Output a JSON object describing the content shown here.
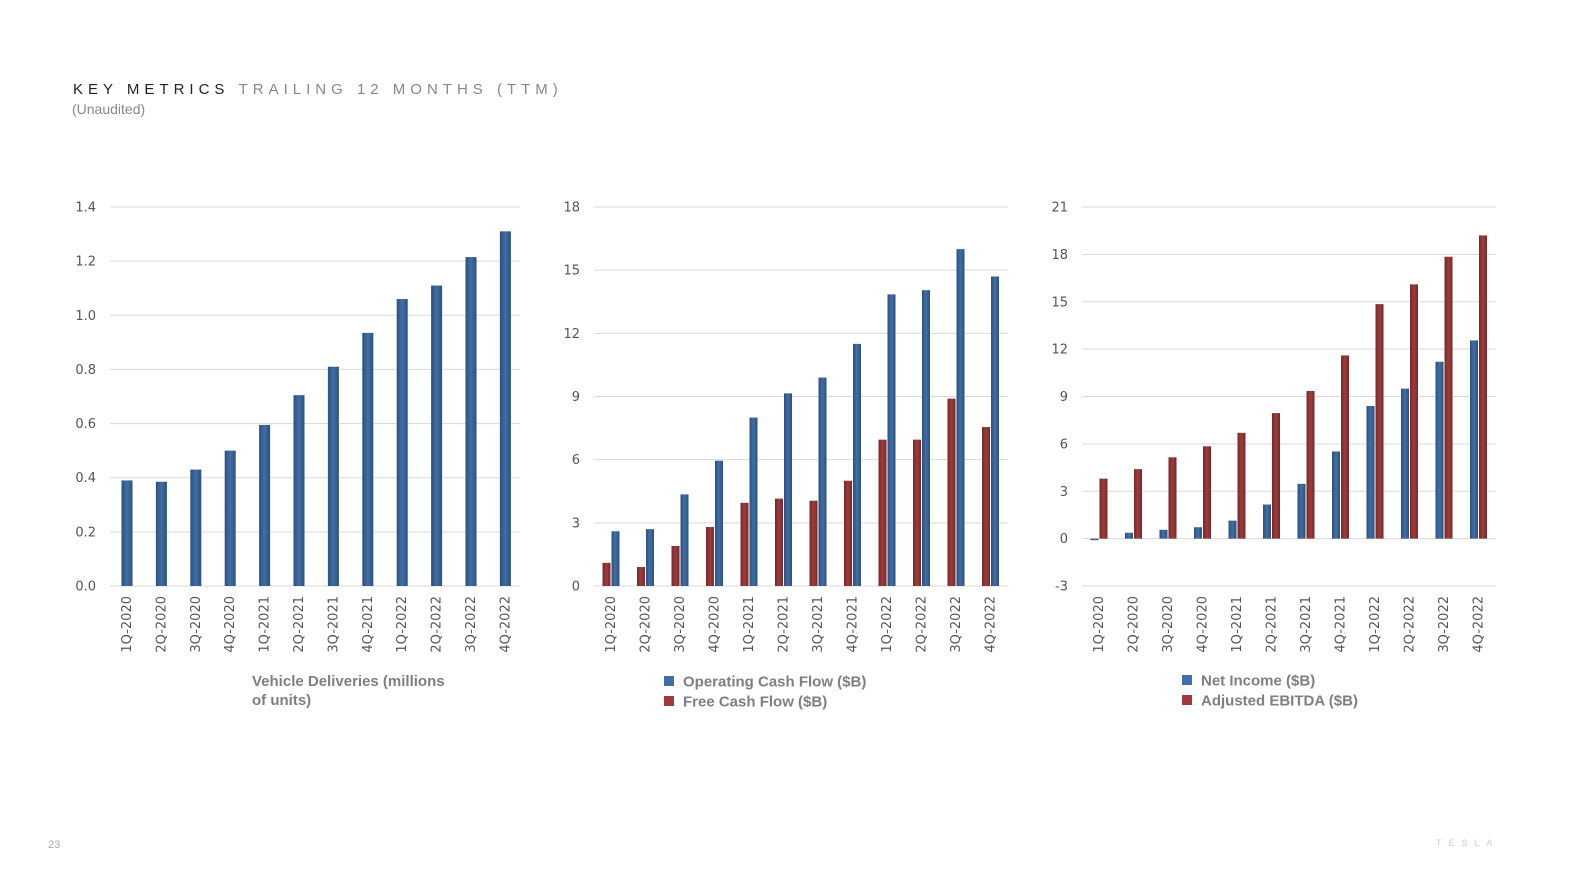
{
  "header": {
    "title_main": "KEY METRICS",
    "title_sub": "TRAILING 12 MONTHS (TTM)",
    "note": "(Unaudited)"
  },
  "footer": {
    "page_number": "23",
    "logo_text": "TESLA"
  },
  "colors": {
    "blue": "#3f6fa8",
    "red": "#a13a3a",
    "grid": "#d9d9d9",
    "axis_text": "#555555",
    "legend_text": "#7f7f7f"
  },
  "chart_data": [
    {
      "type": "bar",
      "title": "",
      "categories": [
        "1Q-2020",
        "2Q-2020",
        "3Q-2020",
        "4Q-2020",
        "1Q-2021",
        "2Q-2021",
        "3Q-2021",
        "4Q-2021",
        "1Q-2022",
        "2Q-2022",
        "3Q-2022",
        "4Q-2022"
      ],
      "series": [
        {
          "name": "Vehicle Deliveries (millions of units)",
          "color": "blue",
          "values": [
            0.39,
            0.385,
            0.43,
            0.5,
            0.595,
            0.705,
            0.81,
            0.935,
            1.06,
            1.11,
            1.215,
            1.31
          ]
        }
      ],
      "yticks": [
        "0.0",
        "0.2",
        "0.4",
        "0.6",
        "0.8",
        "1.0",
        "1.2",
        "1.4"
      ],
      "ylim": [
        0,
        1.4
      ],
      "xlabel": "Vehicle Deliveries (millions of units)",
      "xlabel_lines": [
        "Vehicle Deliveries (millions",
        "of units)"
      ],
      "legend": "none",
      "grid": true
    },
    {
      "type": "bar",
      "title": "",
      "categories": [
        "1Q-2020",
        "2Q-2020",
        "3Q-2020",
        "4Q-2020",
        "1Q-2021",
        "2Q-2021",
        "3Q-2021",
        "4Q-2021",
        "1Q-2022",
        "2Q-2022",
        "3Q-2022",
        "4Q-2022"
      ],
      "series": [
        {
          "name": "Free Cash Flow ($B)",
          "color": "red",
          "values": [
            1.1,
            0.9,
            1.9,
            2.8,
            3.95,
            4.15,
            4.05,
            5.0,
            6.95,
            6.95,
            8.9,
            7.55
          ]
        },
        {
          "name": "Operating Cash Flow ($B)",
          "color": "blue",
          "values": [
            2.6,
            2.7,
            4.35,
            5.95,
            8.0,
            9.15,
            9.9,
            11.5,
            13.85,
            14.05,
            16.0,
            14.7
          ]
        }
      ],
      "yticks": [
        "0",
        "3",
        "6",
        "9",
        "12",
        "15",
        "18"
      ],
      "ylim": [
        0,
        18
      ],
      "legend_entries": [
        "Operating Cash Flow ($B)",
        "Free Cash Flow ($B)"
      ],
      "legend": "bottom",
      "grid": true
    },
    {
      "type": "bar",
      "title": "",
      "categories": [
        "1Q-2020",
        "2Q-2020",
        "3Q-2020",
        "4Q-2020",
        "1Q-2021",
        "2Q-2021",
        "3Q-2021",
        "4Q-2021",
        "1Q-2022",
        "2Q-2022",
        "3Q-2022",
        "4Q-2022"
      ],
      "series": [
        {
          "name": "Net Income ($B)",
          "color": "blue",
          "values": [
            -0.1,
            0.37,
            0.56,
            0.72,
            1.14,
            2.16,
            3.47,
            5.52,
            8.4,
            9.5,
            11.2,
            12.55
          ]
        },
        {
          "name": "Adjusted EBITDA ($B)",
          "color": "red",
          "values": [
            3.8,
            4.4,
            5.15,
            5.85,
            6.7,
            7.95,
            9.35,
            11.6,
            14.85,
            16.1,
            17.85,
            19.2
          ]
        }
      ],
      "yticks": [
        "-3",
        "0",
        "3",
        "6",
        "9",
        "12",
        "15",
        "18",
        "21"
      ],
      "ylim": [
        -3,
        21
      ],
      "legend_entries": [
        "Net Income ($B)",
        "Adjusted EBITDA ($B)"
      ],
      "legend": "bottom",
      "grid": true
    }
  ]
}
